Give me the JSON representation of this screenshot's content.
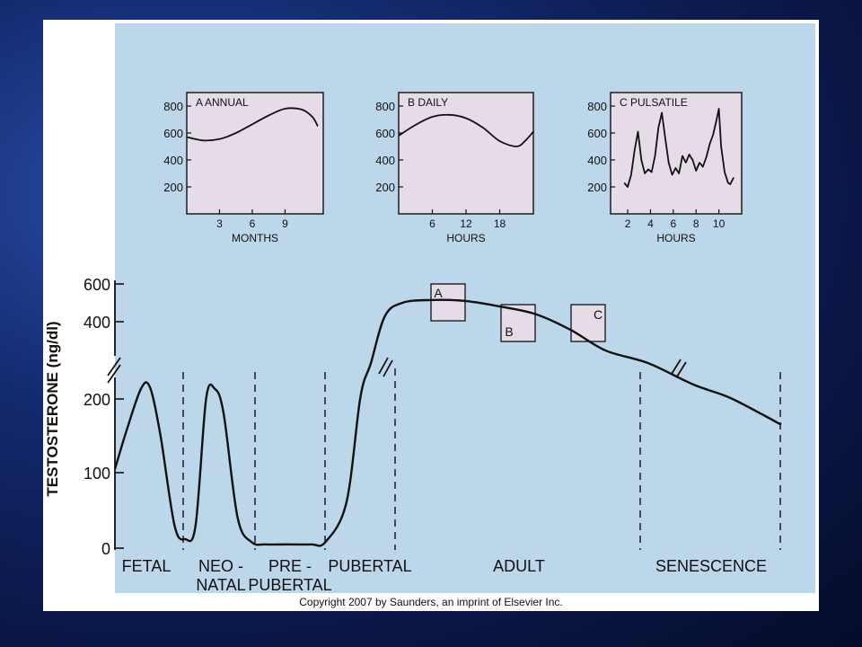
{
  "copyright": "Copyright 2007 by Saunders, an imprint of Elsevier Inc.",
  "colors": {
    "panel": "#bcd6ea",
    "inset": "#e6dce8",
    "ink": "#111111",
    "frame": "#ffffff"
  },
  "chart_data": [
    {
      "id": "main",
      "type": "line",
      "ylabel": "TESTOSTERONE (ng/dl)",
      "y_ticks": [
        "0",
        "100",
        "200",
        "400",
        "600"
      ],
      "axis_break": "broken y-axis between 200 and 400",
      "phases": [
        {
          "label": [
            "FETAL"
          ]
        },
        {
          "label": [
            "NEO -",
            "NATAL"
          ]
        },
        {
          "label": [
            "PRE -",
            "PUBERTAL"
          ]
        },
        {
          "label": [
            "PUBERTAL"
          ]
        },
        {
          "label": [
            "ADULT"
          ]
        },
        {
          "label": [
            "SENESCENCE"
          ]
        }
      ],
      "insets_marked": [
        "A",
        "B",
        "C"
      ],
      "series": [
        {
          "points": [
            [
              0,
              105
            ],
            [
              0.35,
              160
            ],
            [
              0.75,
              230
            ],
            [
              1,
              232
            ],
            [
              1.3,
              150
            ],
            [
              1.7,
              30
            ],
            [
              2,
              12
            ],
            [
              2.3,
              30
            ],
            [
              2.6,
              200
            ],
            [
              2.85,
              228
            ],
            [
              3.1,
              180
            ],
            [
              3.5,
              40
            ],
            [
              3.9,
              8
            ],
            [
              4.3,
              5
            ],
            [
              5,
              5
            ],
            [
              5.6,
              5
            ],
            [
              6,
              8
            ],
            [
              6.6,
              60
            ],
            [
              7,
              205
            ],
            [
              7.3,
              300
            ],
            [
              7.7,
              430
            ],
            [
              8.2,
              500
            ],
            [
              9,
              515
            ],
            [
              10,
              510
            ],
            [
              11,
              480
            ],
            [
              12,
              440
            ],
            [
              13,
              380
            ],
            [
              14,
              330
            ],
            [
              15.2,
              300
            ],
            [
              16.5,
              240
            ],
            [
              17.5,
              205
            ],
            [
              18.5,
              178
            ],
            [
              19,
              165
            ]
          ]
        }
      ]
    },
    {
      "id": "A",
      "type": "line",
      "title": "A ANNUAL",
      "xlabel": "MONTHS",
      "x_ticks": [
        "3",
        "6",
        "9"
      ],
      "y_ticks": [
        "200",
        "400",
        "600",
        "800"
      ],
      "ylim": [
        0,
        900
      ],
      "xlim": [
        0,
        12.5
      ],
      "series": [
        {
          "points": [
            [
              0,
              570
            ],
            [
              1.5,
              545
            ],
            [
              3,
              555
            ],
            [
              4.5,
              600
            ],
            [
              6,
              665
            ],
            [
              7.5,
              730
            ],
            [
              9,
              780
            ],
            [
              10.5,
              775
            ],
            [
              11.5,
              720
            ],
            [
              12,
              650
            ]
          ]
        }
      ]
    },
    {
      "id": "B",
      "type": "line",
      "title": "B DAILY",
      "xlabel": "HOURS",
      "x_ticks": [
        "6",
        "12",
        "18"
      ],
      "y_ticks": [
        "200",
        "400",
        "600",
        "800"
      ],
      "ylim": [
        0,
        900
      ],
      "xlim": [
        0,
        24
      ],
      "series": [
        {
          "points": [
            [
              0,
              580
            ],
            [
              3,
              660
            ],
            [
              6,
              720
            ],
            [
              9,
              735
            ],
            [
              12,
              710
            ],
            [
              15,
              640
            ],
            [
              18,
              540
            ],
            [
              21,
              500
            ],
            [
              22.5,
              540
            ],
            [
              24,
              610
            ]
          ]
        }
      ]
    },
    {
      "id": "C",
      "type": "line",
      "title": "C PULSATILE",
      "xlabel": "HOURS",
      "x_ticks": [
        "2",
        "4",
        "6",
        "8",
        "10"
      ],
      "y_ticks": [
        "200",
        "400",
        "600",
        "800"
      ],
      "ylim": [
        0,
        900
      ],
      "xlim": [
        0.5,
        12
      ],
      "series": [
        {
          "points": [
            [
              1.7,
              230
            ],
            [
              2.0,
              200
            ],
            [
              2.3,
              290
            ],
            [
              2.6,
              470
            ],
            [
              2.9,
              610
            ],
            [
              3.2,
              400
            ],
            [
              3.5,
              300
            ],
            [
              3.8,
              330
            ],
            [
              4.1,
              310
            ],
            [
              4.4,
              430
            ],
            [
              4.7,
              640
            ],
            [
              5.0,
              750
            ],
            [
              5.3,
              560
            ],
            [
              5.6,
              380
            ],
            [
              5.9,
              290
            ],
            [
              6.2,
              340
            ],
            [
              6.5,
              300
            ],
            [
              6.8,
              430
            ],
            [
              7.1,
              380
            ],
            [
              7.4,
              440
            ],
            [
              7.7,
              400
            ],
            [
              8.0,
              320
            ],
            [
              8.3,
              380
            ],
            [
              8.6,
              350
            ],
            [
              8.9,
              420
            ],
            [
              9.2,
              520
            ],
            [
              9.5,
              590
            ],
            [
              9.8,
              700
            ],
            [
              10.0,
              780
            ],
            [
              10.2,
              500
            ],
            [
              10.5,
              310
            ],
            [
              10.8,
              230
            ],
            [
              11.0,
              220
            ],
            [
              11.3,
              270
            ]
          ]
        }
      ]
    }
  ]
}
